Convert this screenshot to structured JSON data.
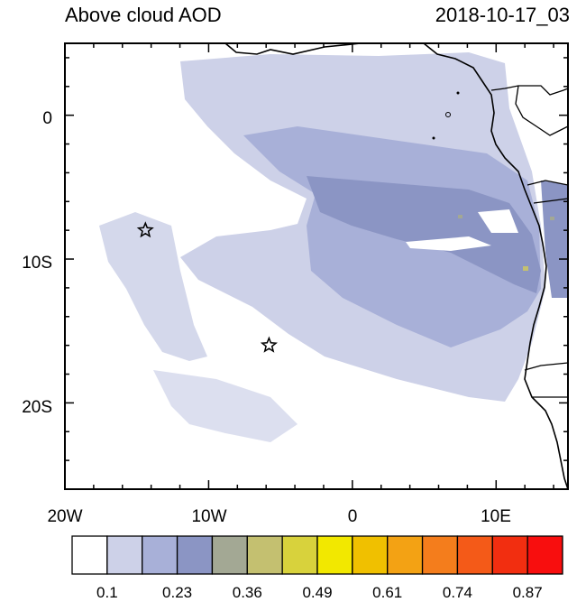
{
  "title_left": "Above cloud AOD",
  "title_right": "2018-10-17_03",
  "x_ticks": [
    "20W",
    "10W",
    "0",
    "10E"
  ],
  "y_ticks": [
    "0",
    "10S",
    "20S"
  ],
  "colorbar": {
    "colors": [
      "#ffffff",
      "#cdd1e8",
      "#a8b0d8",
      "#8b95c4",
      "#a3a894",
      "#c4c070",
      "#d8d23c",
      "#f2e800",
      "#f0c000",
      "#f3a214",
      "#f47d1c",
      "#f45a18",
      "#f22e10",
      "#f80e0e"
    ],
    "labels": [
      "0.1",
      "0.23",
      "0.36",
      "0.49",
      "0.61",
      "0.74",
      "0.87"
    ]
  },
  "markers": [
    {
      "name": "star-marker-west",
      "lon": -14.4,
      "lat": -8.0
    },
    {
      "name": "star-marker-central",
      "lon": -5.8,
      "lat": -16.0
    }
  ]
}
